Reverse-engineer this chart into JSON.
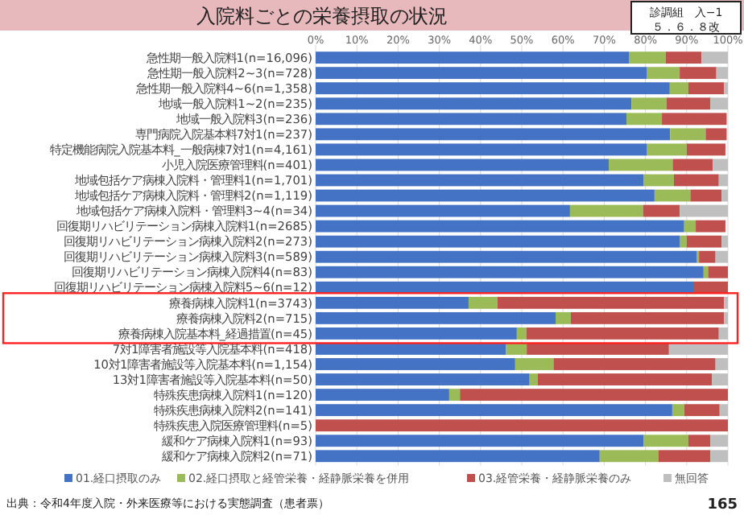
{
  "chart_data": {
    "type": "bar",
    "orientation": "horizontal",
    "stacked": true,
    "title": "入院料ごとの栄養摂取の状況",
    "annotations": [
      "診調組　入−1",
      "５．６．８改",
      "出典：令和4年度入院・外来医療等における実態調査（患者票）",
      "165"
    ],
    "categories": [
      "急性期一般入院料1(n=16,096)",
      "急性期一般入院料2~3(n=728)",
      "急性期一般入院料4~6(n=1,358)",
      "地域一般入院料1~2(n=235)",
      "地域一般入院料3(n=236)",
      "専門病院入院基本料7対1(n=237)",
      "特定機能病院入院基本料_一般病棟7対1(n=4,161)",
      "小児入院医療管理料(n=401)",
      "地域包括ケア病棟入院料・管理料1(n=1,701)",
      "地域包括ケア病棟入院料・管理料2(n=1,119)",
      "地域包括ケア病棟入院料・管理料3~4(n=34)",
      "回復期リハビリテーション病棟入院料1(n=2685)",
      "回復期リハビリテーション病棟入院料2(n=273)",
      "回復期リハビリテーション病棟入院料3(n=589)",
      "回復期リハビリテーション病棟入院料4(n=83)",
      "回復期リハビリテーション病棟入院料5~6(n=12)",
      "療養病棟入院料1(n=3743)",
      "療養病棟入院料2(n=715)",
      "療養病棟入院基本料_経過措置(n=45)",
      "7対1障害者施設等入院基本料(n=418)",
      "10対1障害者施設等入院基本料(n=1,154)",
      "13対1障害者施設等入院基本料(n=50)",
      "特殊疾患病棟入院料1(n=120)",
      "特殊疾患病棟入院料2(n=141)",
      "特殊疾患入院医療管理料(n=5)",
      "緩和ケア病棟入院料1(n=93)",
      "緩和ケア病棟入院料2(n=71)"
    ],
    "series": [
      {
        "name": "01.経口摂取のみ",
        "color": "#4472c4",
        "values": [
          76.1,
          80.4,
          85.9,
          76.6,
          75.4,
          86.0,
          80.4,
          71.1,
          79.6,
          82.2,
          61.7,
          89.4,
          88.4,
          92.5,
          94.1,
          91.6,
          37.1,
          58.2,
          48.8,
          46.2,
          48.4,
          51.9,
          32.4,
          86.5,
          0,
          79.6,
          68.9
        ]
      },
      {
        "name": "02.経口摂取と経管栄養・経静脈栄養を併用",
        "color": "#9bbb59",
        "values": [
          8.8,
          7.9,
          4.5,
          8.5,
          8.6,
          8.6,
          9.6,
          15.5,
          7.3,
          8.7,
          17.7,
          2.8,
          1.6,
          0.5,
          1.1,
          0,
          7.0,
          3.7,
          2.3,
          5.0,
          9.3,
          2.0,
          2.6,
          2.9,
          0,
          10.8,
          14.3
        ]
      },
      {
        "name": "03.経管栄養・経静脈栄養のみ",
        "color": "#c0504d",
        "values": [
          8.7,
          8.9,
          8.7,
          10.6,
          15.7,
          5.1,
          9.4,
          9.7,
          10.9,
          7.6,
          8.9,
          7.2,
          8.5,
          4.0,
          4.8,
          8.4,
          55.0,
          37.2,
          46.7,
          34.5,
          39.3,
          42.2,
          65.0,
          8.6,
          100,
          5.3,
          12.5
        ]
      },
      {
        "name": "無回答",
        "color": "#bfbfbf",
        "values": [
          6.4,
          2.8,
          0.9,
          4.3,
          null,
          null,
          null,
          3.7,
          2.2,
          1.5,
          11.7,
          null,
          1.5,
          3.0,
          0,
          0,
          0.9,
          0.9,
          2.2,
          14.3,
          3.0,
          3.9,
          0,
          2.0,
          0,
          4.3,
          4.3
        ]
      }
    ],
    "xlim": [
      0,
      100
    ],
    "xticks": [
      {
        "value": 0,
        "label": "0%"
      },
      {
        "value": 10,
        "label": "10%"
      },
      {
        "value": 20,
        "label": "20%"
      },
      {
        "value": 30,
        "label": "30%"
      },
      {
        "value": 40,
        "label": "40%"
      },
      {
        "value": 50,
        "label": "50%"
      },
      {
        "value": 60,
        "label": "60%"
      },
      {
        "value": 70,
        "label": "70%"
      },
      {
        "value": 80,
        "label": "80%"
      },
      {
        "value": 90,
        "label": "90%"
      },
      {
        "value": 100,
        "label": "100%"
      }
    ],
    "grid": "x",
    "legend": "bottom"
  }
}
